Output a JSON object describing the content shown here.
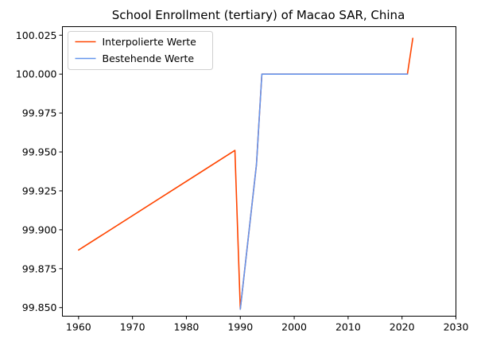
{
  "chart_data": {
    "type": "line",
    "title": "School Enrollment (tertiary) of Macao SAR, China",
    "xlabel": "",
    "ylabel": "",
    "xlim": [
      1957,
      2030
    ],
    "ylim": [
      99.8445,
      100.0305
    ],
    "x_ticks": [
      1960,
      1970,
      1980,
      1990,
      2000,
      2010,
      2020,
      2030
    ],
    "y_ticks": [
      99.85,
      99.875,
      99.9,
      99.925,
      99.95,
      99.975,
      100.0,
      100.025
    ],
    "y_tick_labels": [
      "99.850",
      "99.875",
      "99.900",
      "99.925",
      "99.950",
      "99.975",
      "100.000",
      "100.025"
    ],
    "grid": false,
    "legend_position": "top-left",
    "series": [
      {
        "name": "Interpolierte Werte",
        "color": "#ff4500",
        "x": [
          1960,
          1989,
          1990,
          1993,
          1994,
          2021,
          2022
        ],
        "y": [
          99.887,
          99.951,
          99.849,
          99.942,
          100.0,
          100.0,
          100.023
        ]
      },
      {
        "name": "Bestehende Werte",
        "color": "#6495ed",
        "x": [
          1990,
          1993,
          1994,
          2021
        ],
        "y": [
          99.849,
          99.942,
          100.0,
          100.0
        ]
      }
    ]
  }
}
